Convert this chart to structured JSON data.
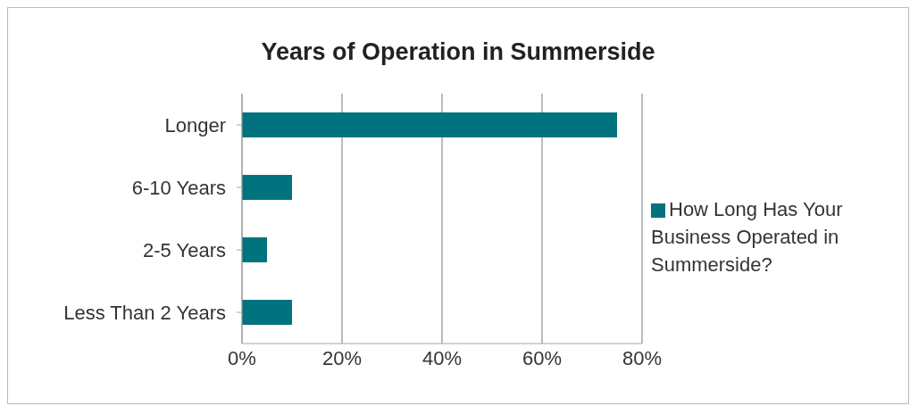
{
  "chart_data": {
    "type": "bar",
    "orientation": "horizontal",
    "title": "Years of Operation in Summerside",
    "categories": [
      "Longer",
      "6-10 Years",
      "2-5 Years",
      "Less Than 2 Years"
    ],
    "series": [
      {
        "name": "How Long Has Your Business Operated in Summerside?",
        "color": "#00737f",
        "values": [
          75,
          10,
          5,
          10
        ]
      }
    ],
    "xlim": [
      0,
      80
    ],
    "xticks": [
      {
        "value": 0,
        "label": "0%"
      },
      {
        "value": 20,
        "label": "20%"
      },
      {
        "value": 40,
        "label": "40%"
      },
      {
        "value": 60,
        "label": "60%"
      },
      {
        "value": 80,
        "label": "80%"
      }
    ],
    "grid": "x",
    "legend": "right"
  }
}
